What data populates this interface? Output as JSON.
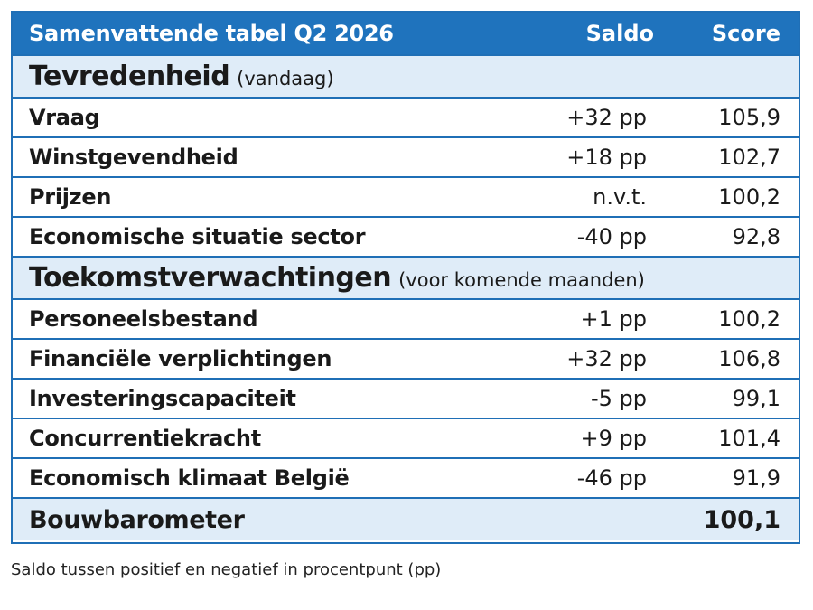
{
  "table": {
    "header": {
      "title": "Samenvattende tabel Q2 2026",
      "saldo": "Saldo",
      "score": "Score"
    },
    "sections": [
      {
        "title": "Tevredenheid",
        "subtitle": "(vandaag)",
        "rows": [
          {
            "label": "Vraag",
            "saldo": "+32 pp",
            "score": "105,9"
          },
          {
            "label": "Winstgevendheid",
            "saldo": "+18 pp",
            "score": "102,7"
          },
          {
            "label": "Prijzen",
            "saldo": "n.v.t.",
            "score": "100,2"
          },
          {
            "label": "Economische situatie sector",
            "saldo": "-40 pp",
            "score": "92,8"
          }
        ]
      },
      {
        "title": "Toekomstverwachtingen",
        "subtitle": "(voor komende maanden)",
        "rows": [
          {
            "label": "Personeelsbestand",
            "saldo": "+1 pp",
            "score": "100,2"
          },
          {
            "label": "Financiële verplichtingen",
            "saldo": "+32 pp",
            "score": "106,8"
          },
          {
            "label": "Investeringscapaciteit",
            "saldo": "-5 pp",
            "score": "99,1"
          },
          {
            "label": "Concurrentiekracht",
            "saldo": "+9 pp",
            "score": "101,4"
          },
          {
            "label": "Economisch klimaat België",
            "saldo": "-46 pp",
            "score": "91,9"
          }
        ]
      }
    ],
    "total": {
      "label": "Bouwbarometer",
      "score": "100,1"
    }
  },
  "footnote": "Saldo tussen positief en negatief in procentpunt (pp)",
  "colors": {
    "header_bg": "#1f73bd",
    "section_bg": "#dfecf8",
    "border": "#1f6fb6"
  }
}
